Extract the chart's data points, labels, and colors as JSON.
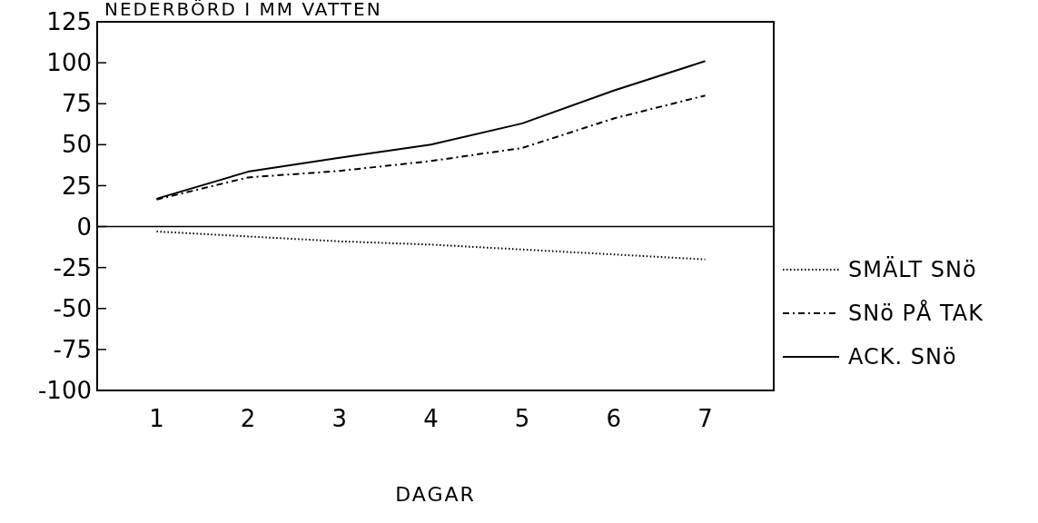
{
  "chart_data": {
    "type": "line",
    "title": "NEDERBÖRD I MM VATTEN",
    "xlabel": "DAGAR",
    "x": [
      1,
      2,
      3,
      4,
      5,
      6,
      7
    ],
    "xlim": [
      0.35,
      7.75
    ],
    "xticks": [
      1,
      2,
      3,
      4,
      5,
      6,
      7
    ],
    "ylim": [
      -100,
      125
    ],
    "yticks": [
      -100,
      -75,
      -50,
      -25,
      0,
      25,
      50,
      75,
      100,
      125
    ],
    "ref_lines": [
      {
        "axis": "y",
        "value": 0,
        "color": "#000000"
      }
    ],
    "series": [
      {
        "name": "SMÄLT SNö",
        "color": "#000000",
        "line_style": "dotted",
        "values": [
          -3,
          -6,
          -9,
          -11,
          -14,
          -17,
          -20
        ]
      },
      {
        "name": "SNö PÅ TAK",
        "color": "#000000",
        "line_style": "dashdot",
        "values": [
          16.5,
          30,
          34,
          40,
          48,
          66,
          80
        ]
      },
      {
        "name": "ACK. SNö",
        "color": "#000000",
        "line_style": "solid",
        "values": [
          17,
          33.5,
          42,
          50,
          63,
          83,
          101
        ]
      }
    ],
    "legend": "right",
    "grid": false
  }
}
